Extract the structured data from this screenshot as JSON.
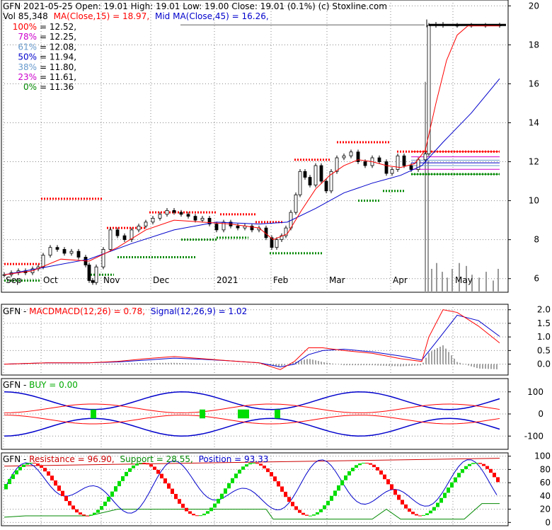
{
  "header": {
    "line1": "GFN  2021-05-25 Open: 19.01  High: 19.01  Low: 19.00  Close: 19.01 (0.1%)  (c) Stoxline.com",
    "vol_label": "Vol 85,348",
    "ma15_label": "MA(Close,15) = 18.97,",
    "ma45_label": "Mid MA(Close,45) = 16.26,"
  },
  "fib_levels": [
    {
      "pct": "100%",
      "value": "= 12.52,",
      "price": 12.52,
      "color": "#ff0000",
      "line_color": "#ff0000"
    },
    {
      "pct": "78%",
      "value": "= 12.25,",
      "price": 12.25,
      "color": "#cc00cc",
      "line_color": "#cc00cc"
    },
    {
      "pct": "61%",
      "value": "= 12.08,",
      "price": 12.08,
      "color": "#6699cc",
      "line_color": "#6699cc"
    },
    {
      "pct": "50%",
      "value": "= 11.94,",
      "price": 11.94,
      "color": "#0000cc",
      "line_color": "#0000cc"
    },
    {
      "pct": "38%",
      "value": "= 11.80,",
      "price": 11.8,
      "color": "#6699cc",
      "line_color": "#6699cc"
    },
    {
      "pct": "23%",
      "value": "= 11.61,",
      "price": 11.61,
      "color": "#cc00cc",
      "line_color": "#cc00cc"
    },
    {
      "pct": "0%",
      "value": "= 11.36",
      "price": 11.36,
      "color": "#008800",
      "line_color": "#008800"
    }
  ],
  "chart_data": [
    {
      "type": "candlestick",
      "y_ticks": [
        "6",
        "8",
        "10",
        "12",
        "14",
        "16",
        "18",
        "20"
      ],
      "ylim": [
        5.3,
        20.3
      ],
      "x_labels": [
        "Sep",
        "Oct",
        "Nov",
        "Dec",
        "2021",
        "Feb",
        "Mar",
        "Apr",
        "May"
      ],
      "price_points": [
        [
          0,
          6.2
        ],
        [
          10,
          6.3
        ],
        [
          20,
          6.4
        ],
        [
          30,
          6.3
        ],
        [
          40,
          6.5
        ],
        [
          48,
          6.6
        ],
        [
          55,
          7.2
        ],
        [
          65,
          7.6
        ],
        [
          75,
          7.5
        ],
        [
          85,
          7.3
        ],
        [
          95,
          7.4
        ],
        [
          105,
          7.1
        ],
        [
          115,
          6.7
        ],
        [
          120,
          5.9
        ],
        [
          125,
          5.8
        ],
        [
          130,
          6.6
        ],
        [
          140,
          7.5
        ],
        [
          150,
          8.5
        ],
        [
          160,
          8.2
        ],
        [
          170,
          8.0
        ],
        [
          180,
          8.5
        ],
        [
          190,
          8.7
        ],
        [
          200,
          8.9
        ],
        [
          210,
          9.1
        ],
        [
          220,
          9.3
        ],
        [
          230,
          9.5
        ],
        [
          240,
          9.4
        ],
        [
          250,
          9.3
        ],
        [
          260,
          9.2
        ],
        [
          270,
          9.0
        ],
        [
          280,
          9.1
        ],
        [
          290,
          8.8
        ],
        [
          300,
          8.5
        ],
        [
          310,
          8.9
        ],
        [
          320,
          8.7
        ],
        [
          330,
          8.6
        ],
        [
          340,
          8.7
        ],
        [
          350,
          8.5
        ],
        [
          360,
          8.6
        ],
        [
          370,
          8.1
        ],
        [
          378,
          7.6
        ],
        [
          385,
          8.0
        ],
        [
          392,
          8.2
        ],
        [
          398,
          8.6
        ],
        [
          405,
          9.4
        ],
        [
          412,
          10.3
        ],
        [
          418,
          11.5
        ],
        [
          425,
          11.2
        ],
        [
          432,
          10.8
        ],
        [
          440,
          11.8
        ],
        [
          448,
          11.0
        ],
        [
          455,
          10.5
        ],
        [
          462,
          11.5
        ],
        [
          470,
          12.2
        ],
        [
          480,
          12.3
        ],
        [
          490,
          12.5
        ],
        [
          500,
          12.0
        ],
        [
          510,
          11.8
        ],
        [
          520,
          12.2
        ],
        [
          530,
          12.0
        ],
        [
          540,
          11.4
        ],
        [
          548,
          11.6
        ],
        [
          556,
          12.3
        ],
        [
          565,
          11.8
        ],
        [
          575,
          11.6
        ],
        [
          585,
          12.1
        ],
        [
          595,
          12.4
        ],
        [
          600,
          19.0
        ],
        [
          610,
          19.05
        ],
        [
          620,
          19.0
        ],
        [
          640,
          19.0
        ],
        [
          660,
          19.0
        ],
        [
          680,
          19.0
        ],
        [
          700,
          19.01
        ]
      ],
      "ma15_points": [
        [
          0,
          6.2
        ],
        [
          40,
          6.4
        ],
        [
          80,
          7.0
        ],
        [
          120,
          6.9
        ],
        [
          160,
          7.6
        ],
        [
          200,
          8.5
        ],
        [
          240,
          9.0
        ],
        [
          280,
          8.9
        ],
        [
          320,
          8.8
        ],
        [
          360,
          8.6
        ],
        [
          380,
          8.0
        ],
        [
          400,
          8.3
        ],
        [
          420,
          9.5
        ],
        [
          440,
          10.6
        ],
        [
          460,
          11.3
        ],
        [
          480,
          11.8
        ],
        [
          500,
          12.1
        ],
        [
          520,
          12.0
        ],
        [
          540,
          11.8
        ],
        [
          560,
          11.7
        ],
        [
          580,
          11.9
        ],
        [
          595,
          12.6
        ],
        [
          610,
          15.0
        ],
        [
          625,
          17.2
        ],
        [
          640,
          18.5
        ],
        [
          655,
          18.97
        ],
        [
          700,
          18.97
        ]
      ],
      "ma45_points": [
        [
          0,
          6.2
        ],
        [
          60,
          6.6
        ],
        [
          120,
          7.0
        ],
        [
          180,
          7.8
        ],
        [
          240,
          8.5
        ],
        [
          300,
          8.9
        ],
        [
          360,
          8.8
        ],
        [
          400,
          8.9
        ],
        [
          440,
          9.6
        ],
        [
          480,
          10.4
        ],
        [
          520,
          10.9
        ],
        [
          560,
          11.3
        ],
        [
          590,
          11.8
        ],
        [
          620,
          13.0
        ],
        [
          660,
          14.5
        ],
        [
          700,
          16.26
        ]
      ],
      "volume_bars": [
        [
          594,
          0.72
        ],
        [
          598,
          0.45
        ],
        [
          603,
          0.08
        ],
        [
          610,
          0.1
        ],
        [
          618,
          0.07
        ],
        [
          625,
          0.05
        ],
        [
          632,
          0.08
        ],
        [
          642,
          0.1
        ],
        [
          652,
          0.09
        ],
        [
          660,
          0.06
        ],
        [
          670,
          0.05
        ],
        [
          680,
          0.07
        ],
        [
          690,
          0.04
        ],
        [
          697,
          0.08
        ]
      ]
    },
    {
      "type": "line",
      "title_prefix": "GFN - ",
      "title_macd": "MACDMACD(12,26) = 0.78,",
      "title_signal": "Signal(12,26,9) = 1.02",
      "y_ticks": [
        "0.0",
        "0.5",
        "1.0",
        "1.5",
        "2.0"
      ],
      "ylim": [
        -0.4,
        2.2
      ],
      "macd_points": [
        [
          0,
          0.0
        ],
        [
          60,
          0.05
        ],
        [
          120,
          0.05
        ],
        [
          160,
          0.1
        ],
        [
          200,
          0.2
        ],
        [
          240,
          0.28
        ],
        [
          280,
          0.2
        ],
        [
          320,
          0.12
        ],
        [
          360,
          0.05
        ],
        [
          390,
          -0.2
        ],
        [
          410,
          0.1
        ],
        [
          430,
          0.6
        ],
        [
          450,
          0.6
        ],
        [
          480,
          0.5
        ],
        [
          520,
          0.4
        ],
        [
          560,
          0.2
        ],
        [
          590,
          0.1
        ],
        [
          600,
          1.0
        ],
        [
          620,
          2.0
        ],
        [
          640,
          1.9
        ],
        [
          670,
          1.4
        ],
        [
          700,
          0.78
        ]
      ],
      "signal_points": [
        [
          0,
          0.0
        ],
        [
          60,
          0.05
        ],
        [
          120,
          0.05
        ],
        [
          160,
          0.08
        ],
        [
          200,
          0.15
        ],
        [
          240,
          0.22
        ],
        [
          280,
          0.18
        ],
        [
          320,
          0.12
        ],
        [
          360,
          0.05
        ],
        [
          390,
          -0.1
        ],
        [
          410,
          0.0
        ],
        [
          430,
          0.35
        ],
        [
          450,
          0.5
        ],
        [
          480,
          0.55
        ],
        [
          520,
          0.45
        ],
        [
          560,
          0.3
        ],
        [
          590,
          0.15
        ],
        [
          610,
          0.8
        ],
        [
          640,
          1.8
        ],
        [
          670,
          1.6
        ],
        [
          700,
          1.02
        ]
      ]
    },
    {
      "type": "line",
      "title_prefix": "GFN - ",
      "title_buy": "BUY = 0.00",
      "y_ticks": [
        "100",
        "0",
        "-100"
      ],
      "ylim": [
        -160,
        160
      ]
    },
    {
      "type": "line",
      "title_prefix": "GFN - ",
      "title_res": "Resistance = 96.90,",
      "title_sup": "Support = 28.55,",
      "title_pos": "Position = 93.33",
      "y_ticks": [
        "0",
        "20",
        "40",
        "60",
        "80",
        "100"
      ],
      "ylim": [
        -5,
        105
      ]
    }
  ],
  "colors": {
    "red": "#ff0000",
    "darkred": "#cc0000",
    "blue": "#0000cc",
    "green": "#008800",
    "bright_green": "#00dd00",
    "magenta": "#cc00cc",
    "grid": "#888888"
  }
}
